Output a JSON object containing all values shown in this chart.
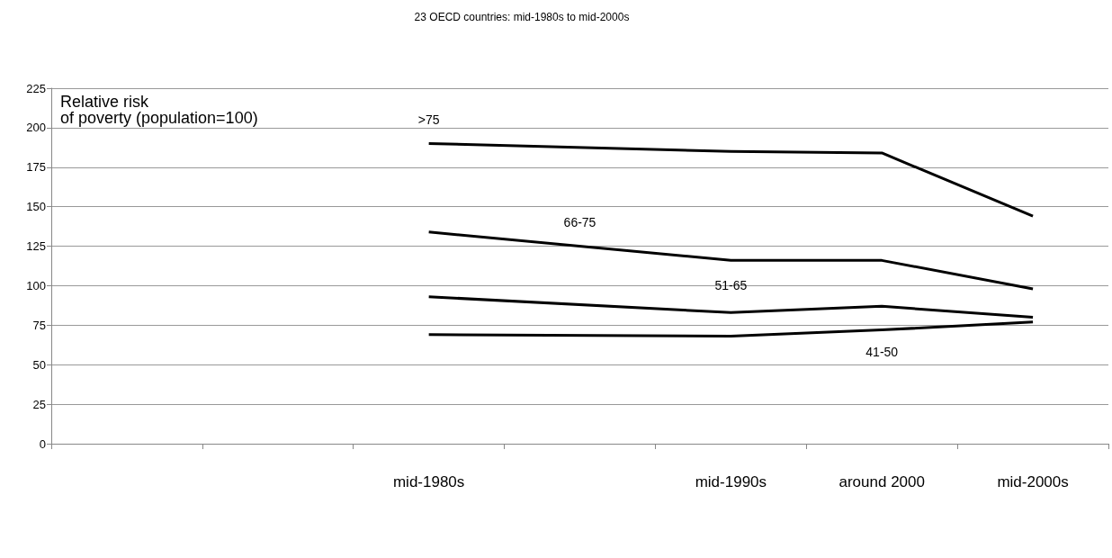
{
  "chart_data": {
    "type": "line",
    "title": "23 OECD countries: mid-1980s to mid-2000s",
    "ylabel": "Relative risk\nof poverty (population=100)",
    "categories": [
      null,
      null,
      "mid-1980s",
      null,
      "mid-1990s",
      "around 2000",
      "mid-2000s"
    ],
    "series": [
      {
        "name": ">75",
        "color": "#000000",
        "values": [
          null,
          null,
          190,
          null,
          185,
          184,
          144
        ]
      },
      {
        "name": "66-75",
        "color": "#000000",
        "values": [
          null,
          null,
          134,
          null,
          116,
          116,
          98
        ]
      },
      {
        "name": "51-65",
        "color": "#000000",
        "values": [
          null,
          null,
          93,
          null,
          83,
          87,
          80
        ]
      },
      {
        "name": "41-50",
        "color": "#000000",
        "values": [
          null,
          null,
          69,
          null,
          68,
          72,
          77
        ]
      }
    ],
    "ylim": [
      0,
      225
    ],
    "yticks": [
      0,
      25,
      50,
      75,
      100,
      125,
      150,
      175,
      200,
      225
    ],
    "grid": "y",
    "legend": false,
    "marker": "none",
    "line_style": "solid"
  }
}
